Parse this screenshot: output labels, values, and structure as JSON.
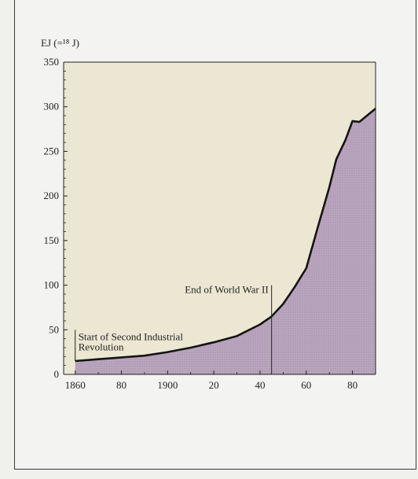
{
  "chart_data": {
    "type": "area",
    "title": "",
    "ylabel": "EJ (=¹⁸ J)",
    "xlabel": "",
    "ylim": [
      0,
      350
    ],
    "xlim": [
      1855,
      1990
    ],
    "yticks": [
      0,
      50,
      100,
      150,
      200,
      250,
      300,
      350
    ],
    "ytick_labels": [
      "0",
      "50",
      "100",
      "150",
      "200",
      "250",
      "300",
      "350"
    ],
    "xticks": [
      1860,
      1880,
      1900,
      1920,
      1940,
      1960,
      1980
    ],
    "xtick_labels": [
      "1860",
      "80",
      "1900",
      "20",
      "40",
      "60",
      "80"
    ],
    "x": [
      1860,
      1870,
      1880,
      1890,
      1900,
      1910,
      1920,
      1930,
      1940,
      1945,
      1950,
      1955,
      1960,
      1965,
      1970,
      1973,
      1977,
      1980,
      1983,
      1990
    ],
    "y": [
      15,
      17,
      19,
      21,
      25,
      30,
      36,
      43,
      56,
      65,
      79,
      98,
      119,
      165,
      210,
      241,
      263,
      284,
      283,
      298
    ],
    "grid": false,
    "colors": {
      "plot_background": "#ebe7d2",
      "area_fill": "#b9a6be",
      "line": "#141414"
    },
    "annotations": [
      {
        "x": 1860,
        "text_lines": [
          "Start of Second Industrial",
          "Revolution"
        ]
      },
      {
        "x": 1945,
        "text_lines": [
          "End of World War II"
        ]
      }
    ]
  }
}
